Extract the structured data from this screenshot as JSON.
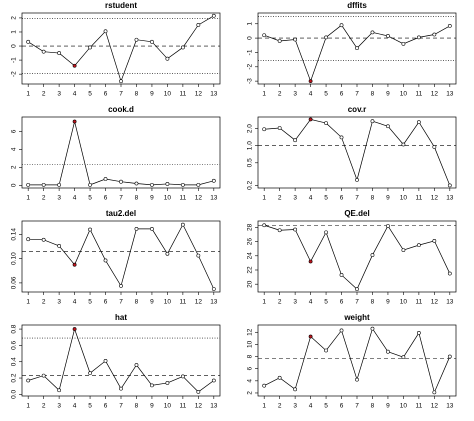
{
  "chart_data": [
    {
      "type": "line",
      "title": "rstudent",
      "x": [
        1,
        2,
        3,
        4,
        5,
        6,
        7,
        8,
        9,
        10,
        11,
        12,
        13
      ],
      "values": [
        0.3,
        -0.4,
        -0.5,
        -1.4,
        -0.1,
        1.05,
        -2.5,
        0.45,
        0.3,
        -0.9,
        -0.1,
        1.5,
        2.15
      ],
      "xlim": [
        0.6,
        13.4
      ],
      "ylim": [
        -2.7,
        2.35
      ],
      "yticks": [
        -2,
        -1,
        0,
        1,
        2
      ],
      "reference_lines": [
        {
          "value": 1.96,
          "style": "dotted"
        },
        {
          "value": -1.96,
          "style": "dotted"
        },
        {
          "value": 0,
          "style": "dashed"
        }
      ],
      "highlight_x": 4,
      "highlight_color": "#c0141c",
      "color": "#000000"
    },
    {
      "type": "line",
      "title": "dffits",
      "x": [
        1,
        2,
        3,
        4,
        5,
        6,
        7,
        8,
        9,
        10,
        11,
        12,
        13
      ],
      "values": [
        0.2,
        -0.2,
        -0.1,
        -3.0,
        0.05,
        0.9,
        -0.7,
        0.4,
        0.15,
        -0.4,
        0.05,
        0.25,
        0.85
      ],
      "xlim": [
        0.6,
        13.4
      ],
      "ylim": [
        -3.2,
        1.75
      ],
      "yticks": [
        -3,
        -2,
        -1,
        0,
        1
      ],
      "reference_lines": [
        {
          "value": 1.5,
          "style": "dotted"
        },
        {
          "value": -1.55,
          "style": "dotted"
        },
        {
          "value": 0,
          "style": "dashed"
        }
      ],
      "highlight_x": 4,
      "highlight_color": "#c0141c",
      "color": "#000000"
    },
    {
      "type": "line",
      "title": "cook.d",
      "x": [
        1,
        2,
        3,
        4,
        5,
        6,
        7,
        8,
        9,
        10,
        11,
        12,
        13
      ],
      "values": [
        0.05,
        0.05,
        0.05,
        7.1,
        0.05,
        0.7,
        0.4,
        0.2,
        0.05,
        0.15,
        0.05,
        0.05,
        0.5
      ],
      "xlim": [
        0.6,
        13.4
      ],
      "ylim": [
        -0.3,
        7.6
      ],
      "yticks": [
        0,
        2,
        4,
        6
      ],
      "reference_lines": [
        {
          "value": 2.3,
          "style": "dotted"
        }
      ],
      "highlight_x": 4,
      "highlight_color": "#c0141c",
      "color": "#000000"
    },
    {
      "type": "line",
      "title": "cov.r",
      "x": [
        1,
        2,
        3,
        4,
        5,
        6,
        7,
        8,
        9,
        10,
        11,
        12,
        13
      ],
      "values": [
        1.95,
        2.05,
        1.25,
        2.9,
        2.5,
        1.4,
        0.25,
        2.7,
        2.2,
        1.05,
        2.6,
        0.95,
        0.2
      ],
      "xlim": [
        0.6,
        13.4
      ],
      "ylim": [
        0.18,
        3.2
      ],
      "ylog": true,
      "yticks": [
        0.2,
        0.5,
        {
          "value": 1,
          "label": "1.0"
        },
        {
          "value": 2,
          "label": "2.0"
        }
      ],
      "reference_lines": [
        {
          "value": 1,
          "style": "dashed"
        }
      ],
      "highlight_x": 4,
      "highlight_color": "#c0141c",
      "color": "#000000"
    },
    {
      "type": "line",
      "title": "tau2.del",
      "x": [
        1,
        2,
        3,
        4,
        5,
        6,
        7,
        8,
        9,
        10,
        11,
        12,
        13
      ],
      "values": [
        0.132,
        0.131,
        0.121,
        0.09,
        0.148,
        0.097,
        0.055,
        0.149,
        0.149,
        0.108,
        0.156,
        0.105,
        0.05
      ],
      "xlim": [
        0.6,
        13.4
      ],
      "ylim": [
        0.045,
        0.162
      ],
      "yticks": [
        0.06,
        {
          "value": 0.1,
          "label": "0.10"
        },
        0.14
      ],
      "reference_lines": [
        {
          "value": 0.112,
          "style": "dashed"
        }
      ],
      "highlight_x": 4,
      "highlight_color": "#c0141c",
      "color": "#000000"
    },
    {
      "type": "line",
      "title": "QE.del",
      "x": [
        1,
        2,
        3,
        4,
        5,
        6,
        7,
        8,
        9,
        10,
        11,
        12,
        13
      ],
      "values": [
        28.3,
        27.6,
        27.7,
        23.2,
        27.3,
        21.3,
        19.3,
        24.1,
        28.2,
        24.8,
        25.5,
        26.1,
        21.5
      ],
      "xlim": [
        0.6,
        13.4
      ],
      "ylim": [
        18.9,
        28.9
      ],
      "yticks": [
        20,
        22,
        24,
        26,
        28
      ],
      "reference_lines": [
        {
          "value": 28.3,
          "style": "dashed"
        }
      ],
      "highlight_x": 4,
      "highlight_color": "#c0141c",
      "color": "#000000"
    },
    {
      "type": "line",
      "title": "hat",
      "x": [
        1,
        2,
        3,
        4,
        5,
        6,
        7,
        8,
        9,
        10,
        11,
        12,
        13
      ],
      "values": [
        0.17,
        0.23,
        0.05,
        0.8,
        0.26,
        0.41,
        0.07,
        0.36,
        0.11,
        0.14,
        0.22,
        0.03,
        0.17
      ],
      "xlim": [
        0.6,
        13.4
      ],
      "ylim": [
        -0.02,
        0.85
      ],
      "yticks": [
        {
          "value": 0,
          "label": "0.0"
        },
        0.2,
        0.4,
        0.6,
        0.8
      ],
      "reference_lines": [
        {
          "value": 0.69,
          "style": "dotted"
        },
        {
          "value": 0.23,
          "style": "dashed"
        }
      ],
      "highlight_x": 4,
      "highlight_color": "#c0141c",
      "color": "#000000"
    },
    {
      "type": "line",
      "title": "weight",
      "x": [
        1,
        2,
        3,
        4,
        5,
        6,
        7,
        8,
        9,
        10,
        11,
        12,
        13
      ],
      "values": [
        3.2,
        4.5,
        2.6,
        11.3,
        9.0,
        12.3,
        4.2,
        12.6,
        8.8,
        7.9,
        11.9,
        2.1,
        8.0
      ],
      "xlim": [
        0.6,
        13.4
      ],
      "ylim": [
        1.5,
        13.2
      ],
      "yticks": [
        2,
        4,
        6,
        8,
        10,
        12
      ],
      "reference_lines": [
        {
          "value": 7.7,
          "style": "dashed"
        }
      ],
      "highlight_x": 4,
      "highlight_color": "#c0141c",
      "color": "#000000"
    }
  ]
}
